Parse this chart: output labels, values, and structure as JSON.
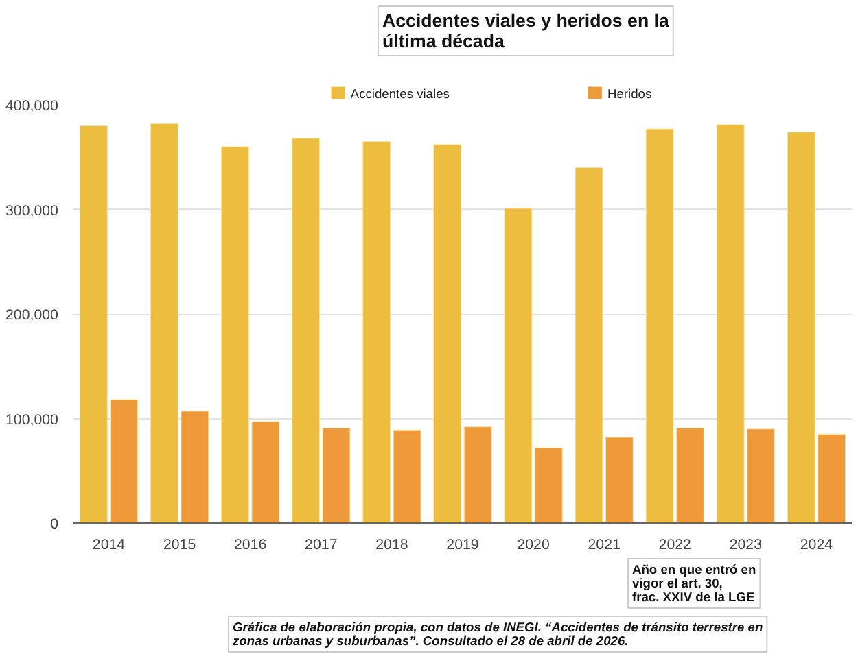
{
  "chart_data": {
    "type": "bar",
    "title": "Accidentes viales y heridos en la última década",
    "categories": [
      "2014",
      "2015",
      "2016",
      "2017",
      "2018",
      "2019",
      "2020",
      "2021",
      "2022",
      "2023",
      "2024"
    ],
    "series": [
      {
        "name": "Accidentes viales",
        "color": "#edbd40",
        "values": [
          380000,
          382000,
          360000,
          368000,
          365000,
          362000,
          301000,
          340000,
          377000,
          381000,
          374000
        ]
      },
      {
        "name": "Heridos",
        "color": "#ef9a3a",
        "values": [
          118000,
          107000,
          97000,
          91000,
          89000,
          92000,
          72000,
          82000,
          91000,
          90000,
          85000
        ]
      }
    ],
    "ylim": [
      0,
      400000
    ],
    "yticks": [
      {
        "value": 0,
        "label": "0"
      },
      {
        "value": 100000,
        "label": "100,000"
      },
      {
        "value": 200000,
        "label": "200,000"
      },
      {
        "value": 300000,
        "label": "300,000"
      },
      {
        "value": 400000,
        "label": "400,000"
      }
    ],
    "grid": "y",
    "legend": "top",
    "annotations": [
      "Año en que entró en vigor el art. 30, frac. XXIV de la LGE",
      "Gráfica de elaboración propia, con datos de INEGI. “Accidentes de tránsito terrestre en zonas urbanas y suburbanas”. Consultado el 28 de abril de 2026."
    ]
  }
}
